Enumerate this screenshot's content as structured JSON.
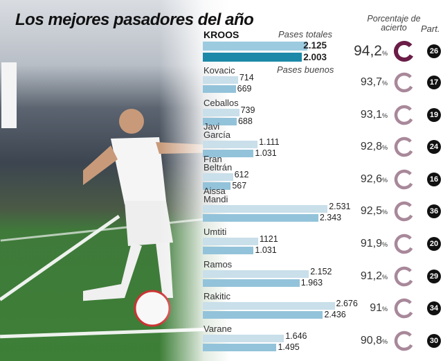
{
  "chart_data": {
    "type": "bar",
    "title": "Los mejores pasadores del año",
    "legend": [
      "Pases totales",
      "Pases buenos"
    ],
    "columns": {
      "percent": "Porcentaje de acierto",
      "matches": "Part."
    },
    "players": [
      {
        "name": "KROOS",
        "total": 2125,
        "good": 2003,
        "total_label": "2.125",
        "good_label": "2.003",
        "pct": "94,2",
        "matches": "26"
      },
      {
        "name": "Kovacic",
        "total": 714,
        "good": 669,
        "total_label": "714",
        "good_label": "669",
        "pct": "93,7",
        "matches": "17"
      },
      {
        "name": "Ceballos",
        "total": 739,
        "good": 688,
        "total_label": "739",
        "good_label": "688",
        "pct": "93,1",
        "matches": "19"
      },
      {
        "name": "Javi\nGarcía",
        "total": 1111,
        "good": 1031,
        "total_label": "1.111",
        "good_label": "1.031",
        "pct": "92,8",
        "matches": "24"
      },
      {
        "name": "Fran\nBeltrán",
        "total": 612,
        "good": 567,
        "total_label": "612",
        "good_label": "567",
        "pct": "92,6",
        "matches": "16"
      },
      {
        "name": "Aissa\nMandi",
        "total": 2531,
        "good": 2343,
        "total_label": "2.531",
        "good_label": "2.343",
        "pct": "92,5",
        "matches": "36"
      },
      {
        "name": "Umtiti",
        "total": 1121,
        "good": 1031,
        "total_label": "1121",
        "good_label": "1.031",
        "pct": "91,9",
        "matches": "20"
      },
      {
        "name": "Ramos",
        "total": 2152,
        "good": 1963,
        "total_label": "2.152",
        "good_label": "1.963",
        "pct": "91,2",
        "matches": "29"
      },
      {
        "name": "Rakitic",
        "total": 2676,
        "good": 2436,
        "total_label": "2.676",
        "good_label": "2.436",
        "pct": "91",
        "matches": "34"
      },
      {
        "name": "Varane",
        "total": 1646,
        "good": 1495,
        "total_label": "1.646",
        "good_label": "1.495",
        "pct": "90,8",
        "matches": "30"
      }
    ],
    "pct_unit": "%",
    "colors": {
      "total": "#c9dfea",
      "good": "#93c3da",
      "highlight_total": "#9ccbe0",
      "highlight_good": "#1d89a8",
      "ring_highlight": "#6a1d47",
      "ring": "#a8889a"
    }
  }
}
